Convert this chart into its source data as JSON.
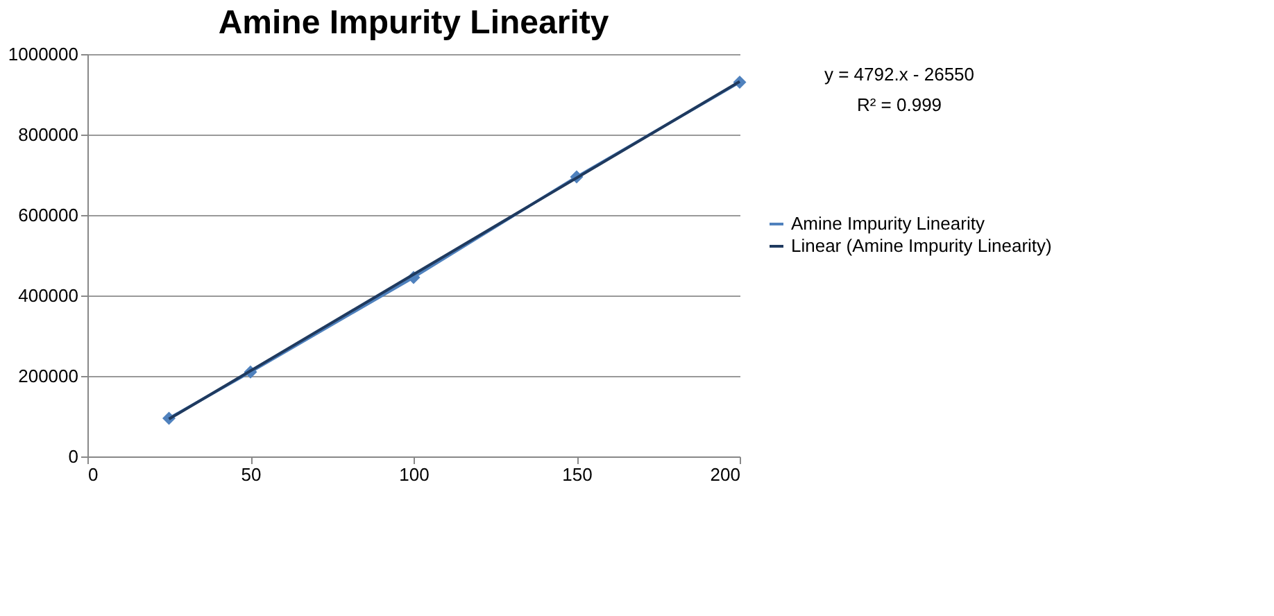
{
  "chart_data": {
    "type": "line",
    "title": "Amine Impurity Linearity",
    "x": [
      25,
      50,
      100,
      150,
      200
    ],
    "series": [
      {
        "name": "Amine Impurity Linearity",
        "color": "#4f81bd",
        "values": [
          95000,
          210000,
          445000,
          695000,
          930000
        ],
        "marker": "diamond",
        "line_style": "solid"
      },
      {
        "name": "Linear (Amine Impurity Linearity)",
        "color": "#1f3a5f",
        "type": "line",
        "x": [
          25,
          200
        ],
        "values": [
          93000,
          932000
        ],
        "marker": "none",
        "line_style": "solid"
      }
    ],
    "xlim": [
      0,
      200
    ],
    "xticks": [
      0,
      50,
      100,
      150,
      200
    ],
    "ylim": [
      0,
      1000000
    ],
    "yticks": [
      0,
      200000,
      400000,
      600000,
      800000,
      1000000
    ],
    "grid": "y",
    "legend": "right",
    "annotations": [
      "y = 4792.x - 26550",
      "R² = 0.999"
    ]
  }
}
